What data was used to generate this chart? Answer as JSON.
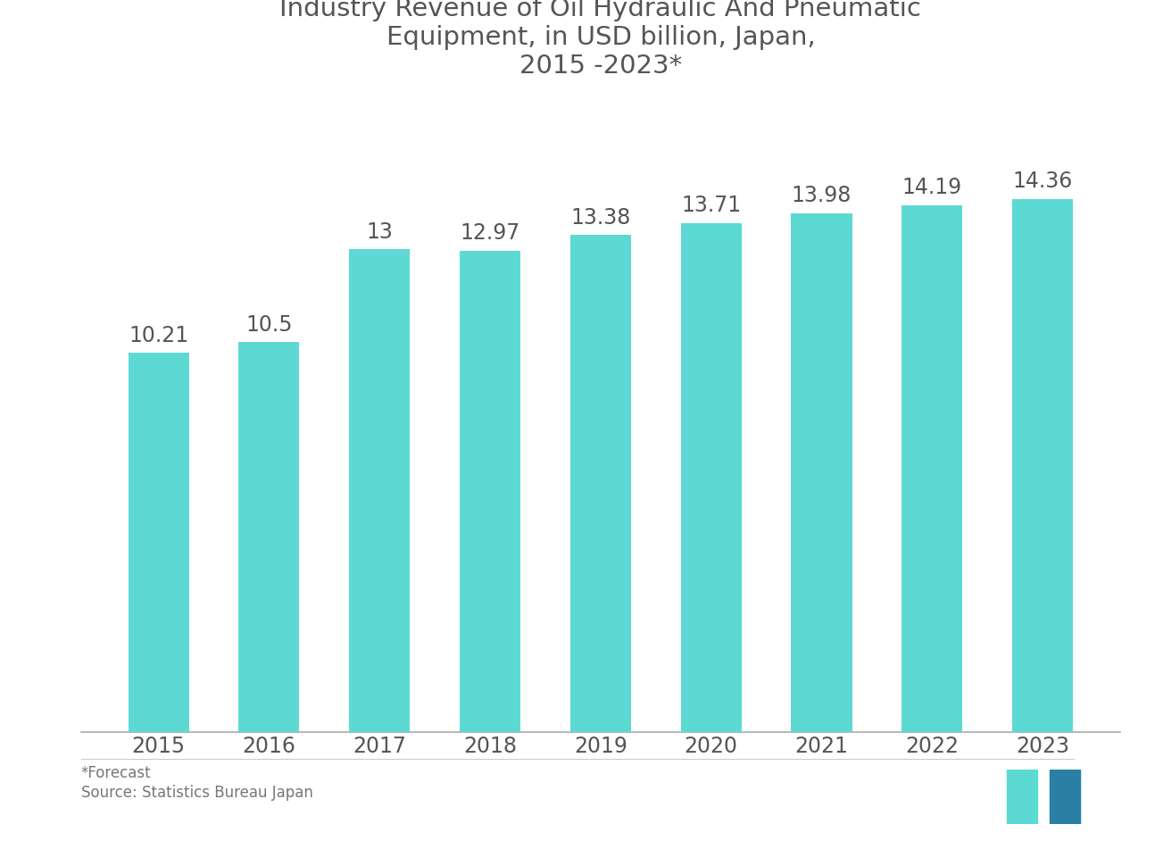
{
  "categories": [
    "2015",
    "2016",
    "2017",
    "2018",
    "2019",
    "2020",
    "2021",
    "2022",
    "2023"
  ],
  "values": [
    10.21,
    10.5,
    13.0,
    12.97,
    13.38,
    13.71,
    13.98,
    14.19,
    14.36
  ],
  "bar_color": "#5DD9D4",
  "background_color": "#ffffff",
  "title_line1": "Industry Revenue of Oil Hydraulic And Pneumatic",
  "title_line2": "Equipment, in USD billion, Japan,",
  "title_line3": "2015 -2023*",
  "title_color": "#555555",
  "label_color": "#555555",
  "axis_color": "#777777",
  "tick_color": "#555555",
  "footnote1": "*Forecast",
  "footnote2": "Source: Statistics Bureau Japan",
  "ylim": [
    0,
    17
  ],
  "bar_width": 0.55,
  "title_fontsize": 21,
  "label_fontsize": 17,
  "tick_fontsize": 17,
  "footnote_fontsize": 12,
  "logo_color1": "#5DD9D4",
  "logo_color2": "#2a7fa5"
}
